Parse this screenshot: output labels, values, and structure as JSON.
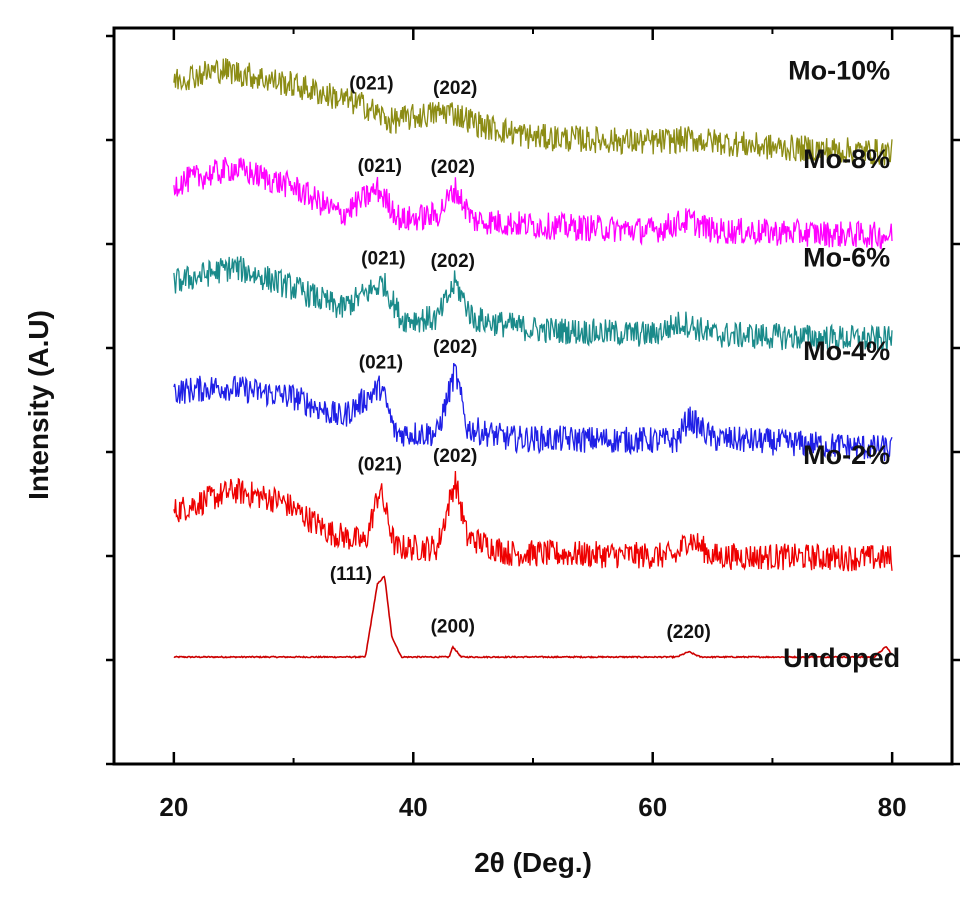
{
  "chart_data": {
    "type": "line",
    "xlabel": "2θ (Deg.)",
    "ylabel": "Intensity (A.U)",
    "xlim": [
      15,
      85
    ],
    "x_ticks": [
      "20",
      "40",
      "60",
      "80"
    ],
    "y_tick_labels_shown": false,
    "grid": false,
    "legend": "none (series labels at right end of each curve)",
    "series": [
      {
        "name": "Undoped",
        "color": "#cc0000",
        "baseline": 0.3,
        "profile": [
          [
            20,
            0.3
          ],
          [
            36,
            0.3
          ],
          [
            37,
            1.0
          ],
          [
            37.6,
            1.08
          ],
          [
            38.2,
            0.5
          ],
          [
            39,
            0.3
          ],
          [
            43,
            0.3
          ],
          [
            43.3,
            0.4
          ],
          [
            44,
            0.3
          ],
          [
            62,
            0.3
          ],
          [
            63,
            0.35
          ],
          [
            64,
            0.3
          ],
          [
            78.5,
            0.3
          ],
          [
            79.5,
            0.4
          ],
          [
            80,
            0.32
          ]
        ],
        "peaks": [
          {
            "label": "(111)",
            "x": 37.3
          },
          {
            "label": "(200)",
            "x": 43.3
          },
          {
            "label": "(220)",
            "x": 63
          }
        ]
      },
      {
        "name": "Mo-2%",
        "color": "#ee0000",
        "baseline": 2.25,
        "profile": [
          [
            20,
            1.7
          ],
          [
            25,
            1.9
          ],
          [
            29,
            1.8
          ],
          [
            33,
            1.5
          ],
          [
            36,
            1.4
          ],
          [
            37.2,
            1.92
          ],
          [
            38.5,
            1.35
          ],
          [
            42,
            1.35
          ],
          [
            43.5,
            2.0
          ],
          [
            44.5,
            1.45
          ],
          [
            48,
            1.3
          ],
          [
            62,
            1.27
          ],
          [
            63,
            1.45
          ],
          [
            65,
            1.27
          ],
          [
            80,
            1.25
          ]
        ],
        "peaks": [
          {
            "label": "(021)",
            "x": 37.2
          },
          {
            "label": "(202)",
            "x": 43.5
          }
        ]
      },
      {
        "name": "Mo-4%",
        "color": "#1f1fe6",
        "baseline": 3.25,
        "profile": [
          [
            20,
            2.85
          ],
          [
            24,
            2.9
          ],
          [
            30,
            2.8
          ],
          [
            34,
            2.6
          ],
          [
            37.3,
            2.9
          ],
          [
            38.5,
            2.45
          ],
          [
            42,
            2.45
          ],
          [
            43.5,
            3.05
          ],
          [
            44.5,
            2.5
          ],
          [
            48,
            2.4
          ],
          [
            62,
            2.38
          ],
          [
            63,
            2.6
          ],
          [
            65,
            2.4
          ],
          [
            80,
            2.3
          ]
        ],
        "peaks": [
          {
            "label": "(021)",
            "x": 37.3
          },
          {
            "label": "(202)",
            "x": 43.5
          }
        ]
      },
      {
        "name": "Mo-6%",
        "color": "#1a8a8a",
        "baseline": 4.15,
        "profile": [
          [
            20,
            3.9
          ],
          [
            25,
            4.05
          ],
          [
            30,
            3.85
          ],
          [
            34,
            3.65
          ],
          [
            37.5,
            3.9
          ],
          [
            39,
            3.55
          ],
          [
            42,
            3.55
          ],
          [
            43.5,
            3.9
          ],
          [
            45,
            3.55
          ],
          [
            50,
            3.45
          ],
          [
            60,
            3.4
          ],
          [
            62.5,
            3.52
          ],
          [
            65,
            3.4
          ],
          [
            80,
            3.35
          ]
        ],
        "peaks": [
          {
            "label": "(021)",
            "x": 37.5
          },
          {
            "label": "(202)",
            "x": 43.3
          }
        ]
      },
      {
        "name": "Mo-8%",
        "color": "#ff00ff",
        "baseline": 5.1,
        "profile": [
          [
            20,
            4.85
          ],
          [
            25,
            5.0
          ],
          [
            30,
            4.82
          ],
          [
            34,
            4.55
          ],
          [
            37,
            4.8
          ],
          [
            39,
            4.5
          ],
          [
            42,
            4.55
          ],
          [
            43.5,
            4.8
          ],
          [
            45,
            4.5
          ],
          [
            50,
            4.45
          ],
          [
            60,
            4.4
          ],
          [
            63,
            4.5
          ],
          [
            65,
            4.4
          ],
          [
            80,
            4.35
          ]
        ],
        "peaks": [
          {
            "label": "(021)",
            "x": 37.2
          },
          {
            "label": "(202)",
            "x": 43.3
          }
        ]
      },
      {
        "name": "Mo-10%",
        "color": "#8c8c14",
        "baseline": 5.95,
        "profile": [
          [
            20,
            5.85
          ],
          [
            24,
            5.95
          ],
          [
            30,
            5.8
          ],
          [
            36,
            5.6
          ],
          [
            38,
            5.45
          ],
          [
            43,
            5.55
          ],
          [
            46,
            5.4
          ],
          [
            50,
            5.3
          ],
          [
            60,
            5.25
          ],
          [
            63,
            5.28
          ],
          [
            70,
            5.2
          ],
          [
            80,
            5.15
          ]
        ],
        "peaks": [
          {
            "label": "(021)",
            "x": 36.5
          },
          {
            "label": "(202)",
            "x": 43.5
          }
        ]
      }
    ]
  }
}
